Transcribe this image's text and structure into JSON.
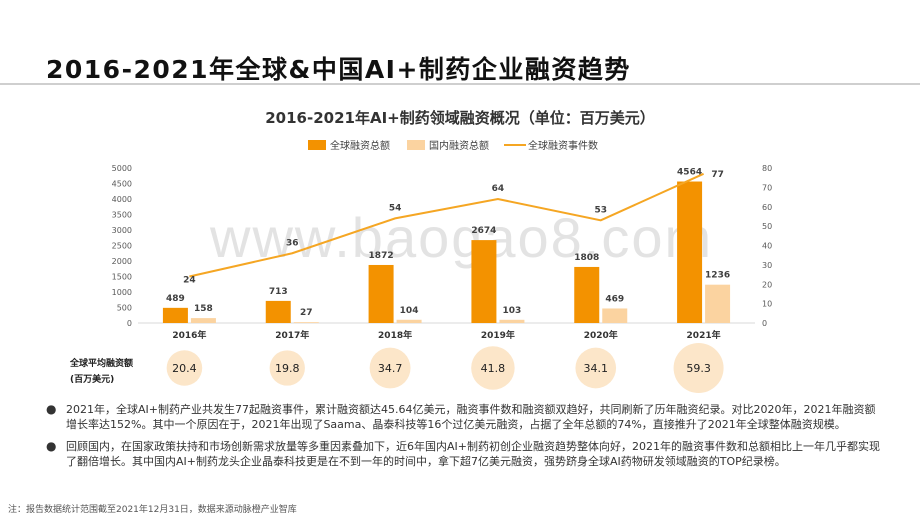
{
  "page": {
    "title": "2016-2021年全球&中国AI+制药企业融资趋势",
    "watermark": "www.baogao8.com",
    "notes": [
      "2021年，全球AI+制药产业共发生77起融资事件，累计融资额达45.64亿美元，融资事件数和融资额双趋好，共同刷新了历年融资纪录。对比2020年，2021年融资额增长率达152%。其中一个原因在于，2021年出现了Saama、晶泰科技等16个过亿美元融资，占据了全年总额的74%，直接推升了2021年全球整体融资规模。",
      "回顾国内，在国家政策扶持和市场创新需求放量等多重因素叠加下，近6年国内AI+制药初创企业融资趋势整体向好，2021年的融资事件数和总额相比上一年几乎都实现了翻倍增长。其中国内AI+制药龙头企业晶泰科技更是在不到一年的时间中，拿下超7亿美元融资，强势跻身全球AI药物研发领域融资的TOP纪录榜。"
    ],
    "footnote": "注：报告数据统计范围截至2021年12月31日，数据来源动脉橙产业智库",
    "bullet": "●"
  },
  "chart_data": {
    "type": "bar",
    "title": "2016-2021年AI+制药领域融资概况（单位：百万美元）",
    "categories": [
      "2016年",
      "2017年",
      "2018年",
      "2019年",
      "2020年",
      "2021年"
    ],
    "series": [
      {
        "name": "全球融资总额",
        "kind": "bar",
        "axis": "left",
        "color": "#F39200",
        "values": [
          489,
          713,
          1872,
          2674,
          1808,
          4564
        ]
      },
      {
        "name": "国内融资总额",
        "kind": "bar",
        "axis": "left",
        "color": "#FBD3A0",
        "values": [
          158,
          27,
          104,
          103,
          469,
          1236
        ]
      },
      {
        "name": "全球融资事件数",
        "kind": "line",
        "axis": "right",
        "color": "#F5A623",
        "values": [
          24,
          36,
          54,
          64,
          53,
          77
        ]
      }
    ],
    "ylim_left": [
      0,
      5000
    ],
    "yticks_left": [
      0,
      500,
      1000,
      1500,
      2000,
      2500,
      3000,
      3500,
      4000,
      4500,
      5000
    ],
    "ylim_right": [
      0,
      80
    ],
    "yticks_right": [
      0,
      10,
      20,
      30,
      40,
      50,
      60,
      70,
      80
    ],
    "legend_position": "top-center",
    "average": {
      "label_line1": "全球平均融资额",
      "label_line2": "(百万美元)",
      "values": [
        20.4,
        19.8,
        34.7,
        41.8,
        34.1,
        59.3
      ],
      "color": "#FCE6C9"
    }
  }
}
